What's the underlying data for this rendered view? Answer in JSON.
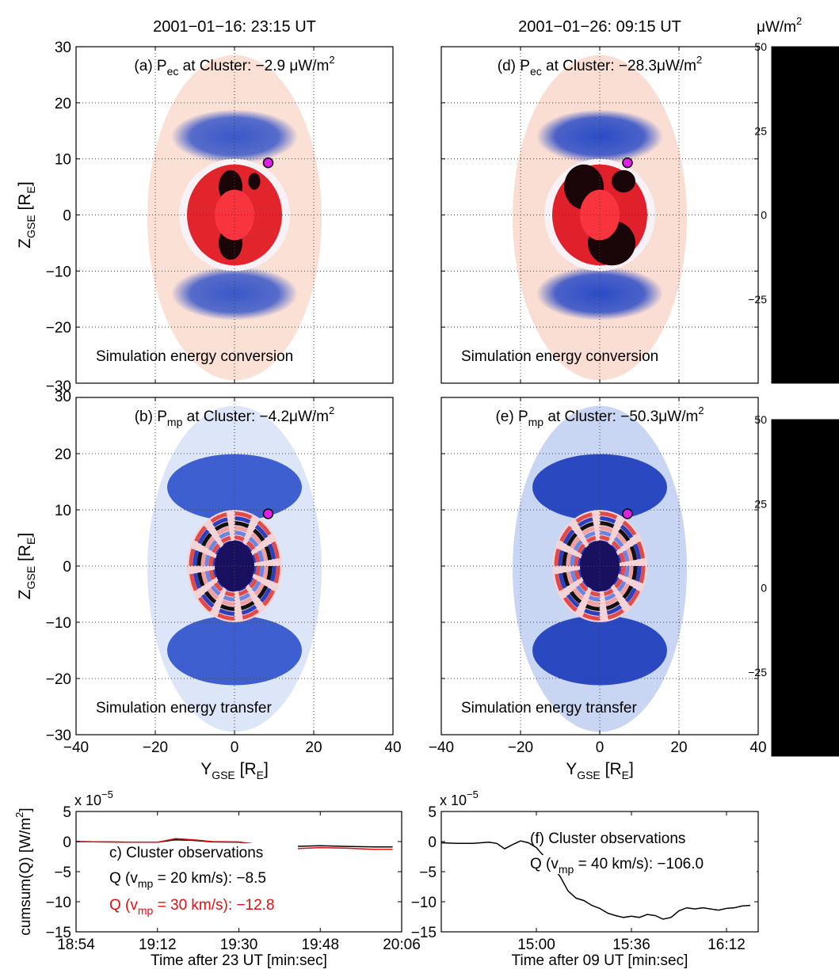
{
  "chart_data": [
    {
      "type": "heatmap",
      "panel": "a",
      "column_title": "2001−01−16: 23:15 UT",
      "title_prefix": "(a) P",
      "title_sub": "ec",
      "title_suffix": " at Cluster: −2.9 μW/m",
      "title_sup": "2",
      "annotation": "Simulation energy conversion",
      "ylabel": "Z",
      "ylabel_sub": "GSE",
      "ylabel_unit": " [R",
      "ylabel_unit_sub": "E",
      "ylabel_close": "]",
      "xlim": [
        -40,
        40
      ],
      "ylim": [
        -30,
        30
      ],
      "yticks": [
        "30",
        "20",
        "10",
        "0",
        "−10",
        "−20",
        "−30"
      ],
      "grid": true,
      "cluster_position": {
        "y": 8.5,
        "z": 9.3
      },
      "pattern": {
        "outer": "#fbe0d6",
        "band": "#3a58c8",
        "ring": "#e2242d",
        "core": "#f8353e",
        "dark_spots": true
      }
    },
    {
      "type": "heatmap",
      "panel": "d",
      "column_title": "2001−01−26: 09:15 UT",
      "title_prefix": "(d) P",
      "title_sub": "ec",
      "title_suffix": " at Cluster: −28.3μW/m",
      "title_sup": "2",
      "annotation": "Simulation energy conversion",
      "xlim": [
        -40,
        40
      ],
      "ylim": [
        -30,
        30
      ],
      "grid": true,
      "cluster_position": {
        "y": 7,
        "z": 9.3
      },
      "pattern": {
        "outer": "#fbded3",
        "band": "#2c4cc6",
        "ring": "#e0202a",
        "core": "#f8353e",
        "dark_spots": true
      }
    },
    {
      "type": "heatmap",
      "panel": "b",
      "title_prefix": "(b) P",
      "title_sub": "mp",
      "title_suffix": " at Cluster: −4.2μW/m",
      "title_sup": "2",
      "annotation": "Simulation energy transfer",
      "ylabel": "Z",
      "ylabel_sub": "GSE",
      "ylabel_unit": " [R",
      "ylabel_unit_sub": "E",
      "ylabel_close": "]",
      "xlabel": "Y",
      "xlabel_sub": "GSE",
      "xlabel_unit": " [R",
      "xlabel_unit_sub": "E",
      "xlabel_close": "]",
      "xlim": [
        -40,
        40
      ],
      "ylim": [
        -30,
        30
      ],
      "xticks": [
        "−40",
        "−20",
        "0",
        "20",
        "40"
      ],
      "yticks": [
        "30",
        "20",
        "10",
        "0",
        "−10",
        "−20",
        "−30"
      ],
      "grid": true,
      "cluster_position": {
        "y": 8.5,
        "z": 9.3
      },
      "pattern": {
        "outer": "#dde6f8",
        "band": "#3d5fd0",
        "ring": "#e85050",
        "core": "#1a1060",
        "dark_spots": false
      }
    },
    {
      "type": "heatmap",
      "panel": "e",
      "title_prefix": "(e) P",
      "title_sub": "mp",
      "title_suffix": " at Cluster: −50.3μW/m",
      "title_sup": "2",
      "annotation": "Simulation energy transfer",
      "xlabel": "Y",
      "xlabel_sub": "GSE",
      "xlabel_unit": " [R",
      "xlabel_unit_sub": "E",
      "xlabel_close": "]",
      "xlim": [
        -40,
        40
      ],
      "ylim": [
        -30,
        30
      ],
      "xticks": [
        "−40",
        "−20",
        "0",
        "20",
        "40"
      ],
      "grid": true,
      "cluster_position": {
        "y": 7,
        "z": 9.3
      },
      "pattern": {
        "outer": "#c9d6f3",
        "band": "#2a48c0",
        "ring": "#e85050",
        "core": "#1a1060",
        "dark_spots": false
      }
    },
    {
      "type": "line",
      "panel": "c",
      "ylabel": "cumsum(Q) [W/m",
      "ylabel_sup": "2",
      "ylabel_close": "]",
      "xlabel": "Time after 23 UT [min:sec]",
      "exponent_label": "x 10",
      "exponent_sup": "−5",
      "xticks": [
        "18:54",
        "19:12",
        "19:30",
        "19:48",
        "20:06"
      ],
      "yticks": [
        "5",
        "0",
        "−5",
        "−10",
        "−15"
      ],
      "xlim": [
        0,
        72
      ],
      "ylim": [
        -15,
        5
      ],
      "annotation_title": "c) Cluster observations",
      "legend_lines": [
        {
          "prefix": "Q (v",
          "sub": "mp",
          "suffix": " = 20 km/s): −8.5",
          "color": "#000000"
        },
        {
          "prefix": "Q (v",
          "sub": "mp",
          "suffix": " = 30 km/s): −12.8",
          "color": "#e01010"
        }
      ],
      "series": [
        {
          "color": "#000000",
          "x": [
            0,
            6,
            12,
            18,
            22,
            26,
            30,
            36,
            42,
            48,
            54,
            60,
            66,
            70
          ],
          "y": [
            0,
            -0.05,
            -0.1,
            -0.1,
            0.3,
            0.2,
            -0.05,
            -0.1,
            -0.6,
            -0.8,
            -0.7,
            -0.8,
            -0.9,
            -0.9
          ]
        },
        {
          "color": "#e01010",
          "x": [
            0,
            6,
            12,
            18,
            22,
            26,
            30,
            36,
            42,
            48,
            54,
            60,
            66,
            70
          ],
          "y": [
            0,
            -0.05,
            -0.1,
            -0.1,
            0.5,
            0.3,
            0.0,
            -0.05,
            -0.9,
            -1.2,
            -1.0,
            -1.1,
            -1.3,
            -1.3
          ]
        }
      ]
    },
    {
      "type": "line",
      "panel": "f",
      "xlabel": "Time after 09 UT [min:sec]",
      "exponent_label": "x 10",
      "exponent_sup": "−5",
      "xticks": [
        "15:00",
        "15:36",
        "16:12"
      ],
      "yticks": [
        "5",
        "0",
        "−5",
        "−10",
        "−15"
      ],
      "xlim": [
        0,
        80
      ],
      "ylim": [
        -15,
        5
      ],
      "annotation_title": "(f) Cluster observations",
      "legend_lines": [
        {
          "prefix": "Q (v",
          "sub": "mp",
          "suffix": " = 40 km/s): −106.0",
          "color": "#000000"
        }
      ],
      "series": [
        {
          "color": "#000000",
          "x": [
            0,
            4,
            8,
            12,
            14,
            16,
            18,
            20,
            22,
            24,
            26,
            30,
            32,
            34,
            36,
            38,
            40,
            42,
            44,
            46,
            48,
            50,
            52,
            54,
            56,
            58,
            60,
            62,
            64,
            66,
            68,
            70,
            72,
            74,
            76,
            78
          ],
          "y": [
            -0.2,
            -0.3,
            -0.3,
            -0.1,
            -0.3,
            -1.2,
            -0.5,
            0.1,
            -0.2,
            -1.0,
            -2.5,
            -5.8,
            -8.2,
            -9.4,
            -9.8,
            -10.6,
            -11.1,
            -11.9,
            -12.3,
            -12.6,
            -12.4,
            -12.6,
            -12.1,
            -12.3,
            -12.9,
            -12.6,
            -11.5,
            -11.0,
            -11.2,
            -11.0,
            -11.2,
            -11.4,
            -11.1,
            -11.0,
            -10.7,
            -10.6
          ]
        }
      ]
    }
  ],
  "colorbar": {
    "unit": "μW/m",
    "unit_sup": "2",
    "ticks": [
      "50",
      "25",
      "0",
      "−25"
    ],
    "range": [
      -50,
      50
    ],
    "colors": [
      "#000000",
      "#1b1a6e",
      "#1f2fb0",
      "#5a78e0",
      "#ffffff",
      "#f06060",
      "#d81a22",
      "#7a1020",
      "#1a0a0a"
    ]
  }
}
